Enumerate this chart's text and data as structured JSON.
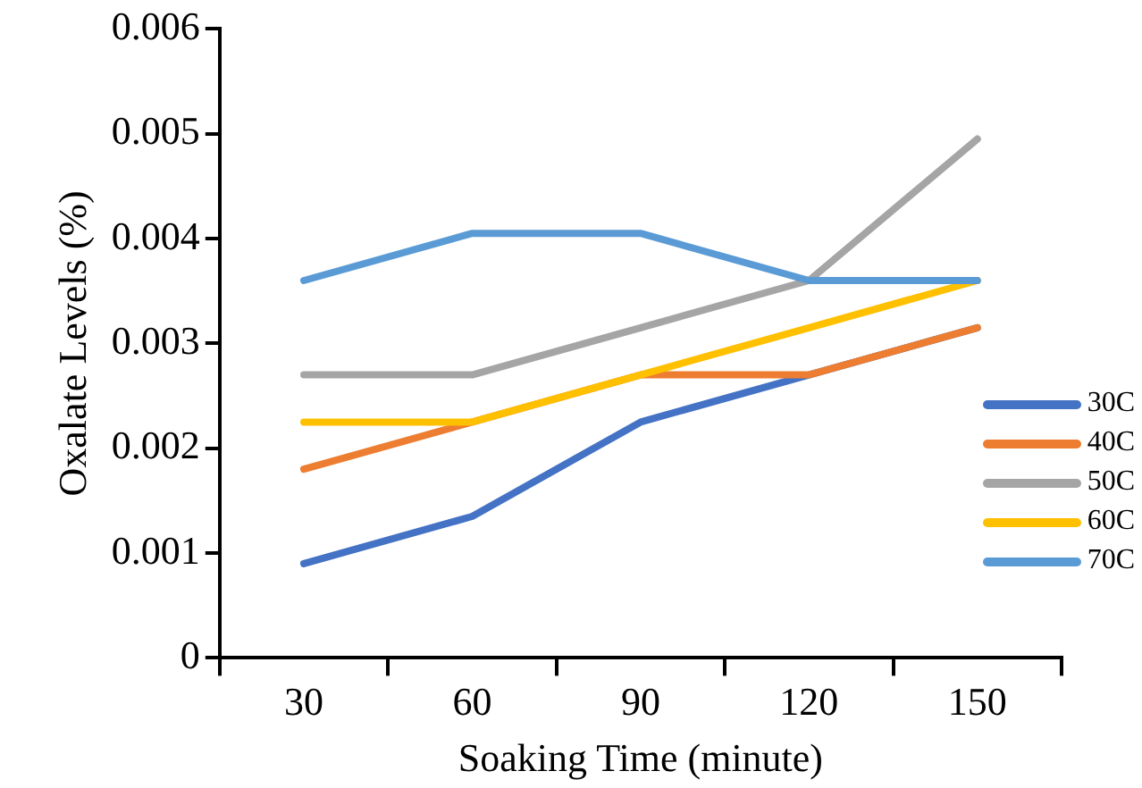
{
  "chart_data": {
    "type": "line",
    "xlabel": "Soaking Time (minute)",
    "ylabel": "Oxalate Levels (%)",
    "categories": [
      "30",
      "60",
      "90",
      "120",
      "150"
    ],
    "series": [
      {
        "name": "30C",
        "color": "#4472c4",
        "values": [
          0.0009,
          0.00135,
          0.00225,
          0.0027,
          0.00315
        ]
      },
      {
        "name": "40C",
        "color": "#ed7d31",
        "values": [
          0.0018,
          0.00225,
          0.0027,
          0.0027,
          0.00315
        ]
      },
      {
        "name": "50C",
        "color": "#a5a5a5",
        "values": [
          0.0027,
          0.0027,
          0.00315,
          0.0036,
          0.00495
        ]
      },
      {
        "name": "60C",
        "color": "#ffc000",
        "values": [
          0.00225,
          0.00225,
          0.0027,
          0.00315,
          0.0036
        ]
      },
      {
        "name": "70C",
        "color": "#5b9bd5",
        "values": [
          0.0036,
          0.00405,
          0.00405,
          0.0036,
          0.0036
        ]
      }
    ],
    "ylim": [
      0,
      0.006
    ],
    "yticks": [
      0,
      0.001,
      0.002,
      0.003,
      0.004,
      0.005,
      0.006
    ],
    "grid": false,
    "legend": "right",
    "marker": "none",
    "line_style": "solid"
  }
}
